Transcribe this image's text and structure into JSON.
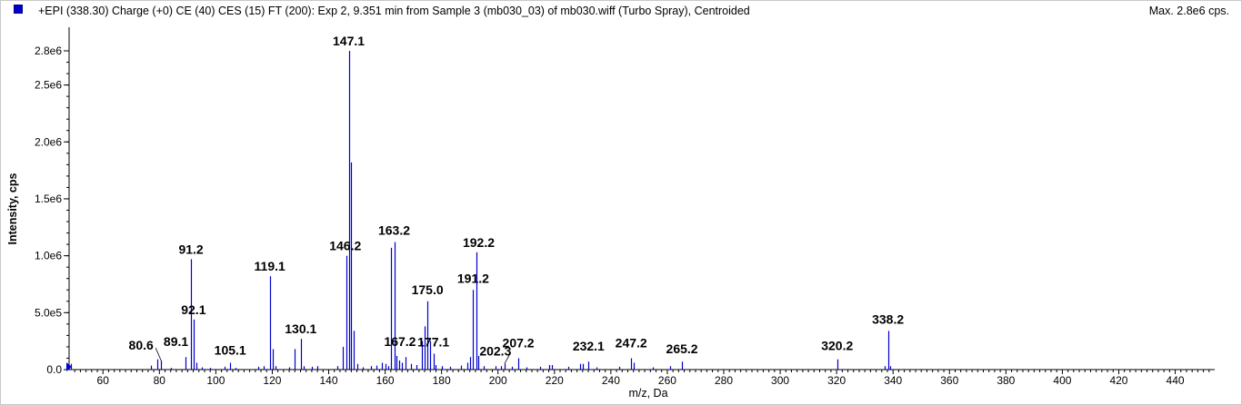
{
  "header": {
    "title": "+EPI (338.30) Charge (+0) CE (40) CES (15) FT (200): Exp 2, 9.351 min from Sample 3 (mb030_03) of mb030.wiff (Turbo Spray), Centroided",
    "max": "Max. 2.8e6 cps.",
    "series_color": "#0000cc"
  },
  "chart_data": {
    "type": "bar",
    "xlabel": "m/z, Da",
    "ylabel": "Intensity, cps",
    "xlim": [
      48,
      454
    ],
    "ylim": [
      0,
      2800000.0
    ],
    "x_ticks": [
      60,
      80,
      100,
      120,
      140,
      160,
      180,
      200,
      220,
      240,
      260,
      280,
      300,
      320,
      340,
      360,
      380,
      400,
      420,
      440
    ],
    "y_ticks": [
      {
        "value": 0,
        "label": "0.0"
      },
      {
        "value": 500000,
        "label": "5.0e5"
      },
      {
        "value": 1000000,
        "label": "1.0e6"
      },
      {
        "value": 1500000,
        "label": "1.5e6"
      },
      {
        "value": 2000000,
        "label": "2.0e6"
      },
      {
        "value": 2500000,
        "label": "2.5e6"
      },
      {
        "value": 2800000,
        "label": "2.8e6"
      }
    ],
    "peaks": [
      [
        48.5,
        50000
      ],
      [
        77.1,
        35000
      ],
      [
        79.1,
        90000
      ],
      [
        80.6,
        80000
      ],
      [
        84.0,
        15000
      ],
      [
        89.1,
        110000
      ],
      [
        91.2,
        970000
      ],
      [
        92.1,
        440000
      ],
      [
        93.1,
        60000
      ],
      [
        95.0,
        20000
      ],
      [
        98.0,
        15000
      ],
      [
        103.0,
        25000
      ],
      [
        105.1,
        60000
      ],
      [
        107.0,
        15000
      ],
      [
        115.0,
        25000
      ],
      [
        117.0,
        30000
      ],
      [
        119.1,
        820000
      ],
      [
        120.2,
        180000
      ],
      [
        121.0,
        30000
      ],
      [
        126.0,
        20000
      ],
      [
        128.0,
        180000
      ],
      [
        130.1,
        270000
      ],
      [
        131.0,
        30000
      ],
      [
        134.0,
        25000
      ],
      [
        136.0,
        30000
      ],
      [
        143.0,
        30000
      ],
      [
        145.0,
        200000
      ],
      [
        146.2,
        1000000
      ],
      [
        147.1,
        2800000
      ],
      [
        148.0,
        1820000
      ],
      [
        149.0,
        340000
      ],
      [
        150.0,
        50000
      ],
      [
        152.0,
        20000
      ],
      [
        155.0,
        30000
      ],
      [
        157.0,
        35000
      ],
      [
        159.0,
        60000
      ],
      [
        160.0,
        50000
      ],
      [
        161.0,
        30000
      ],
      [
        162.2,
        1070000
      ],
      [
        163.2,
        1120000
      ],
      [
        164.0,
        120000
      ],
      [
        165.0,
        80000
      ],
      [
        166.0,
        60000
      ],
      [
        167.2,
        110000
      ],
      [
        169.0,
        50000
      ],
      [
        171.0,
        40000
      ],
      [
        173.0,
        250000
      ],
      [
        174.0,
        380000
      ],
      [
        175.0,
        600000
      ],
      [
        176.0,
        250000
      ],
      [
        177.1,
        140000
      ],
      [
        178.0,
        40000
      ],
      [
        180.0,
        30000
      ],
      [
        183.0,
        25000
      ],
      [
        187.0,
        35000
      ],
      [
        189.0,
        60000
      ],
      [
        190.0,
        110000
      ],
      [
        191.2,
        700000
      ],
      [
        192.2,
        1030000
      ],
      [
        193.0,
        120000
      ],
      [
        195.0,
        30000
      ],
      [
        199.0,
        30000
      ],
      [
        201.0,
        30000
      ],
      [
        202.3,
        50000
      ],
      [
        205.0,
        25000
      ],
      [
        207.2,
        100000
      ],
      [
        210.0,
        20000
      ],
      [
        215.0,
        25000
      ],
      [
        218.0,
        40000
      ],
      [
        219.0,
        40000
      ],
      [
        225.0,
        25000
      ],
      [
        229.0,
        50000
      ],
      [
        230.0,
        50000
      ],
      [
        232.1,
        70000
      ],
      [
        235.0,
        20000
      ],
      [
        243.0,
        25000
      ],
      [
        247.2,
        100000
      ],
      [
        248.0,
        60000
      ],
      [
        255.0,
        20000
      ],
      [
        261.0,
        30000
      ],
      [
        265.2,
        70000
      ],
      [
        320.2,
        90000
      ],
      [
        337.0,
        30000
      ],
      [
        338.2,
        340000
      ],
      [
        339.0,
        30000
      ]
    ],
    "annotations": [
      {
        "label": "80.6",
        "x": 80.6,
        "y": 80000
      },
      {
        "label": "89.1",
        "x": 89.1,
        "y": 110000
      },
      {
        "label": "91.2",
        "x": 91.2,
        "y": 970000
      },
      {
        "label": "92.1",
        "x": 92.1,
        "y": 440000
      },
      {
        "label": "105.1",
        "x": 105.1,
        "y": 60000
      },
      {
        "label": "119.1",
        "x": 119.1,
        "y": 820000
      },
      {
        "label": "130.1",
        "x": 130.1,
        "y": 270000
      },
      {
        "label": "146.2",
        "x": 146.2,
        "y": 1000000
      },
      {
        "label": "147.1",
        "x": 147.1,
        "y": 2800000
      },
      {
        "label": "163.2",
        "x": 163.2,
        "y": 1120000
      },
      {
        "label": "167.2",
        "x": 167.2,
        "y": 110000
      },
      {
        "label": "175.0",
        "x": 175.0,
        "y": 600000
      },
      {
        "label": "177.1",
        "x": 177.1,
        "y": 140000
      },
      {
        "label": "191.2",
        "x": 191.2,
        "y": 700000
      },
      {
        "label": "192.2",
        "x": 192.2,
        "y": 1030000
      },
      {
        "label": "202.3",
        "x": 202.3,
        "y": 50000
      },
      {
        "label": "207.2",
        "x": 207.2,
        "y": 100000
      },
      {
        "label": "232.1",
        "x": 232.1,
        "y": 70000
      },
      {
        "label": "247.2",
        "x": 247.2,
        "y": 100000
      },
      {
        "label": "265.2",
        "x": 265.2,
        "y": 70000
      },
      {
        "label": "320.2",
        "x": 320.2,
        "y": 90000
      },
      {
        "label": "338.2",
        "x": 338.2,
        "y": 340000
      }
    ]
  }
}
